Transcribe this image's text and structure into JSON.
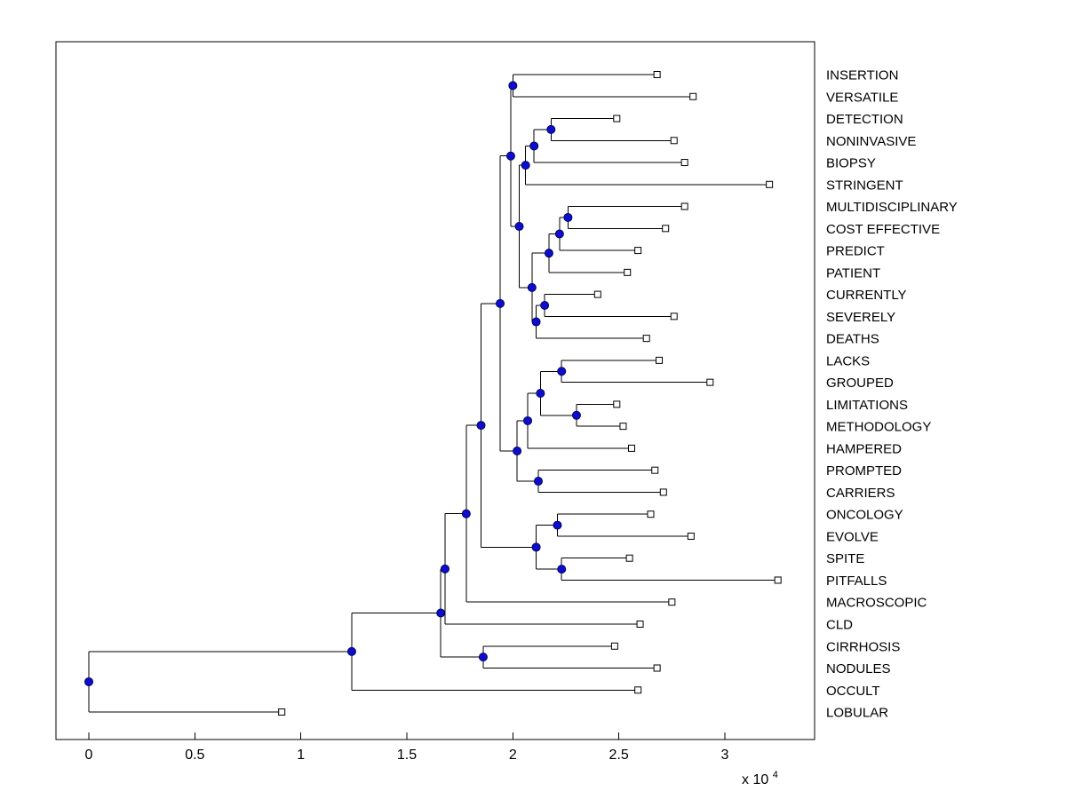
{
  "figure": {
    "kind": "MATLAB-style phylogenetic tree / dendrogram figure",
    "background": "#ffffff"
  },
  "chart_data": {
    "type": "dendrogram",
    "orientation": "left-to-right",
    "title": "",
    "xlabel": "",
    "ylabel": "",
    "grid": false,
    "colors": {
      "branch": "#000000",
      "frame": "#000000",
      "internal_marker_fill": "#0d0dcd",
      "internal_marker_edge": "#000060",
      "leaf_marker_fill": "#ffffff",
      "leaf_marker_edge": "#000000",
      "text": "#000000"
    },
    "x_axis": {
      "ticks": [
        0,
        0.5,
        1,
        1.5,
        2,
        2.5,
        3
      ],
      "tick_labels": [
        "0",
        "0.5",
        "1",
        "1.5",
        "2",
        "2.5",
        "3"
      ],
      "exponent_base_text": "x 10",
      "exponent_power": "4",
      "units_multiplier": 10000,
      "range": [
        -0.16,
        3.43
      ]
    },
    "leaves": [
      {
        "label": "INSERTION",
        "distance": 2.68
      },
      {
        "label": "VERSATILE",
        "distance": 2.85
      },
      {
        "label": "DETECTION",
        "distance": 2.49
      },
      {
        "label": "NONINVASIVE",
        "distance": 2.76
      },
      {
        "label": "BIOPSY",
        "distance": 2.81
      },
      {
        "label": "STRINGENT",
        "distance": 3.21
      },
      {
        "label": "MULTIDISCIPLINARY",
        "distance": 2.81
      },
      {
        "label": "COST EFFECTIVE",
        "distance": 2.72
      },
      {
        "label": "PREDICT",
        "distance": 2.59
      },
      {
        "label": "PATIENT",
        "distance": 2.54
      },
      {
        "label": "CURRENTLY",
        "distance": 2.4
      },
      {
        "label": "SEVERELY",
        "distance": 2.76
      },
      {
        "label": "DEATHS",
        "distance": 2.63
      },
      {
        "label": "LACKS",
        "distance": 2.69
      },
      {
        "label": "GROUPED",
        "distance": 2.93
      },
      {
        "label": "LIMITATIONS",
        "distance": 2.49
      },
      {
        "label": "METHODOLOGY",
        "distance": 2.52
      },
      {
        "label": "HAMPERED",
        "distance": 2.56
      },
      {
        "label": "PROMPTED",
        "distance": 2.67
      },
      {
        "label": "CARRIERS",
        "distance": 2.71
      },
      {
        "label": "ONCOLOGY",
        "distance": 2.65
      },
      {
        "label": "EVOLVE",
        "distance": 2.84
      },
      {
        "label": "SPITE",
        "distance": 2.55
      },
      {
        "label": "PITFALLS",
        "distance": 3.25
      },
      {
        "label": "MACROSCOPIC",
        "distance": 2.75
      },
      {
        "label": "CLD",
        "distance": 2.6
      },
      {
        "label": "CIRRHOSIS",
        "distance": 2.48
      },
      {
        "label": "NODULES",
        "distance": 2.68
      },
      {
        "label": "OCCULT",
        "distance": 2.59
      },
      {
        "label": "LOBULAR",
        "distance": 0.91
      }
    ],
    "tree": {
      "h": 0.0,
      "c": [
        {
          "h": 1.24,
          "c": [
            {
              "h": 1.66,
              "c": [
                {
                  "h": 1.68,
                  "c": [
                    {
                      "h": 1.78,
                      "c": [
                        {
                          "h": 1.85,
                          "c": [
                            {
                              "h": 1.94,
                              "c": [
                                {
                                  "h": 1.99,
                                  "c": [
                                    {
                                      "h": 2.0,
                                      "c": [
                                        {
                                          "leaf": 0
                                        },
                                        {
                                          "leaf": 1
                                        }
                                      ]
                                    },
                                    {
                                      "h": 2.03,
                                      "c": [
                                        {
                                          "h": 2.06,
                                          "c": [
                                            {
                                              "h": 2.1,
                                              "c": [
                                                {
                                                  "h": 2.18,
                                                  "c": [
                                                    {
                                                      "leaf": 2
                                                    },
                                                    {
                                                      "leaf": 3
                                                    }
                                                  ]
                                                },
                                                {
                                                  "leaf": 4
                                                }
                                              ]
                                            },
                                            {
                                              "leaf": 5
                                            }
                                          ]
                                        },
                                        {
                                          "h": 2.09,
                                          "c": [
                                            {
                                              "h": 2.17,
                                              "c": [
                                                {
                                                  "h": 2.22,
                                                  "c": [
                                                    {
                                                      "h": 2.26,
                                                      "c": [
                                                        {
                                                          "leaf": 6
                                                        },
                                                        {
                                                          "leaf": 7
                                                        }
                                                      ]
                                                    },
                                                    {
                                                      "leaf": 8
                                                    }
                                                  ]
                                                },
                                                {
                                                  "leaf": 9
                                                }
                                              ]
                                            },
                                            {
                                              "h": 2.11,
                                              "c": [
                                                {
                                                  "h": 2.15,
                                                  "c": [
                                                    {
                                                      "leaf": 10
                                                    },
                                                    {
                                                      "leaf": 11
                                                    }
                                                  ]
                                                },
                                                {
                                                  "leaf": 12
                                                }
                                              ]
                                            }
                                          ]
                                        }
                                      ]
                                    }
                                  ]
                                },
                                {
                                  "h": 2.02,
                                  "c": [
                                    {
                                      "h": 2.07,
                                      "c": [
                                        {
                                          "h": 2.13,
                                          "c": [
                                            {
                                              "h": 2.23,
                                              "c": [
                                                {
                                                  "leaf": 13
                                                },
                                                {
                                                  "leaf": 14
                                                }
                                              ]
                                            },
                                            {
                                              "h": 2.3,
                                              "c": [
                                                {
                                                  "leaf": 15
                                                },
                                                {
                                                  "leaf": 16
                                                }
                                              ]
                                            }
                                          ]
                                        },
                                        {
                                          "leaf": 17
                                        }
                                      ]
                                    },
                                    {
                                      "h": 2.12,
                                      "c": [
                                        {
                                          "leaf": 18
                                        },
                                        {
                                          "leaf": 19
                                        }
                                      ]
                                    }
                                  ]
                                }
                              ]
                            },
                            {
                              "h": 2.11,
                              "c": [
                                {
                                  "h": 2.21,
                                  "c": [
                                    {
                                      "leaf": 20
                                    },
                                    {
                                      "leaf": 21
                                    }
                                  ]
                                },
                                {
                                  "h": 2.23,
                                  "c": [
                                    {
                                      "leaf": 22
                                    },
                                    {
                                      "leaf": 23
                                    }
                                  ]
                                }
                              ]
                            }
                          ]
                        },
                        {
                          "leaf": 24
                        }
                      ]
                    },
                    {
                      "leaf": 25
                    }
                  ]
                },
                {
                  "h": 1.86,
                  "c": [
                    {
                      "leaf": 26
                    },
                    {
                      "leaf": 27
                    }
                  ]
                }
              ]
            },
            {
              "leaf": 28
            }
          ]
        },
        {
          "leaf": 29
        }
      ]
    },
    "markers": {
      "internal": "filled-blue-circle",
      "leaf": "open-white-square"
    }
  }
}
